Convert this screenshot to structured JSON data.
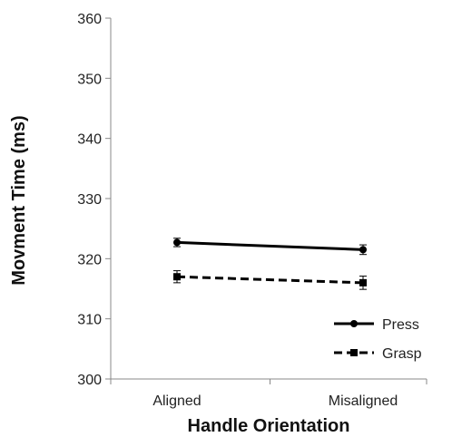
{
  "chart_data": {
    "type": "line",
    "title": "",
    "xlabel": "Handle Orientation",
    "ylabel": "Movment Time (ms)",
    "categories": [
      "Aligned",
      "Misaligned"
    ],
    "ylim": [
      300,
      360
    ],
    "yticks": [
      300,
      310,
      320,
      330,
      340,
      350,
      360
    ],
    "grid": false,
    "legend_position": "bottom-right",
    "series": [
      {
        "name": "Press",
        "values": [
          322.7,
          321.5
        ],
        "errors": [
          0.7,
          0.8
        ],
        "line_style": "solid",
        "marker": "circle",
        "color": "#000000"
      },
      {
        "name": "Grasp",
        "values": [
          317.0,
          316.0
        ],
        "errors": [
          1.0,
          1.1
        ],
        "line_style": "dashed",
        "marker": "square",
        "color": "#000000"
      }
    ]
  }
}
